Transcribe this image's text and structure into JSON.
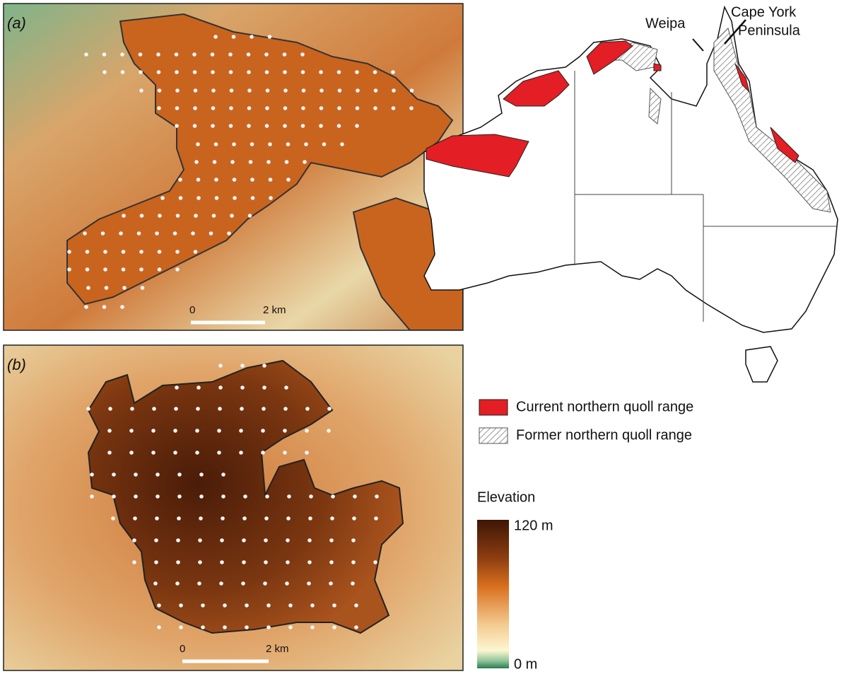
{
  "panel_a": {
    "label": "(a)",
    "scale_bar": {
      "start": "0",
      "end": "2 km"
    }
  },
  "panel_b": {
    "label": "(b)",
    "scale_bar": {
      "start": "0",
      "end": "2 km"
    }
  },
  "map": {
    "weipa": "Weipa",
    "cape_york": [
      "Cape York",
      "Peninsula"
    ]
  },
  "legend": {
    "items": [
      {
        "label": "Current northern quoll range"
      },
      {
        "label": "Former northern quoll range"
      }
    ]
  },
  "elevation": {
    "title": "Elevation",
    "max": "120 m",
    "min": "0 m"
  }
}
